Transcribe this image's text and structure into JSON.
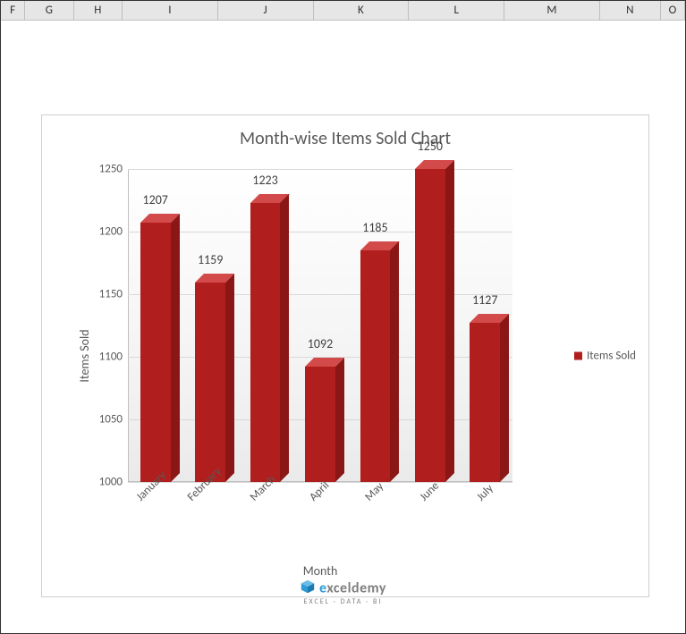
{
  "columns": {
    "letters": [
      "F",
      "G",
      "H",
      "I",
      "J",
      "K",
      "L",
      "M",
      "N",
      "O"
    ],
    "widths": [
      28,
      56,
      56,
      110,
      110,
      110,
      110,
      110,
      70,
      28
    ]
  },
  "chart": {
    "type": "bar-3d",
    "title": "Month-wise Items Sold Chart",
    "title_fontsize": 20,
    "title_color": "#595959",
    "categories": [
      "January",
      "February",
      "March",
      "April",
      "May",
      "June",
      "July"
    ],
    "values": [
      1207,
      1159,
      1223,
      1092,
      1185,
      1250,
      1127
    ],
    "bar_color_front": "#b01e1e",
    "bar_color_top": "#d34a4a",
    "bar_color_side": "#8a1616",
    "ylim": [
      1000,
      1250
    ],
    "ytick_step": 50,
    "yticks": [
      1000,
      1050,
      1100,
      1150,
      1200,
      1250
    ],
    "ylabel": "Items Sold",
    "xlabel": "Month",
    "label_fontsize": 14,
    "tick_fontsize": 13,
    "grid_color": "#d9d9d9",
    "background_gradient": [
      "#ffffff",
      "#eaeaea"
    ],
    "bar_width_ratio": 0.55,
    "legend": {
      "label": "Items Sold",
      "color": "#b01e1e",
      "position": "right"
    }
  },
  "watermark": {
    "icon_color": "#2e9bd6",
    "text_color": "#7f7f7f",
    "brand_accent_color": "#2e9bd6",
    "text": "exceldemy",
    "subtext": "EXCEL · DATA · BI"
  }
}
